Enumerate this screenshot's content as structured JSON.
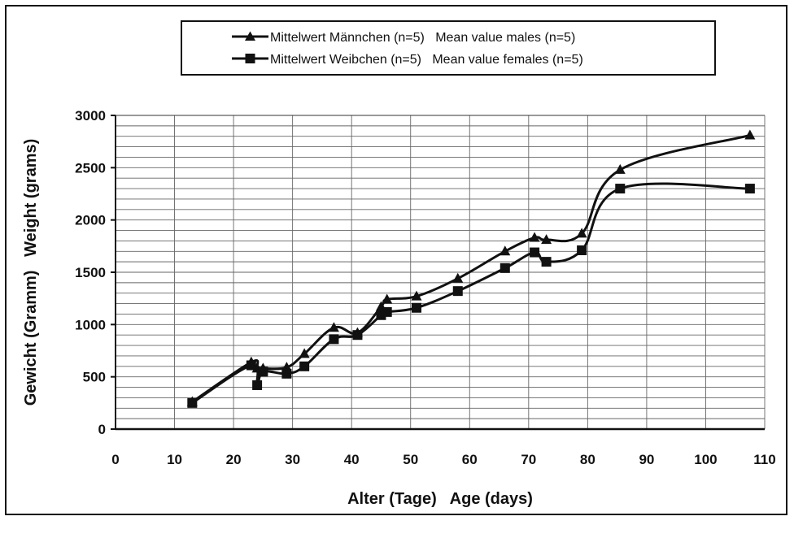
{
  "chart_data": {
    "type": "line",
    "xlabel": "Alter (Tage)   Age (days)",
    "ylabel": "Gewicht (Gramm)   Weight (grams)",
    "xlim": [
      0,
      110
    ],
    "ylim": [
      0,
      3000
    ],
    "x_ticks": [
      "0",
      "10",
      "20",
      "30",
      "40",
      "50",
      "60",
      "70",
      "80",
      "90",
      "100",
      "110"
    ],
    "y_ticks": [
      "0",
      "500",
      "1000",
      "1500",
      "2000",
      "2500",
      "3000"
    ],
    "grid": "on",
    "legend_position": "top-center",
    "series": [
      {
        "name": "Mittelwert Männchen (n=5)   Mean value males (n=5)",
        "marker": "triangle",
        "color": "#111111",
        "points": [
          [
            13,
            260
          ],
          [
            23,
            640
          ],
          [
            24,
            580
          ],
          [
            25,
            580
          ],
          [
            29,
            590
          ],
          [
            32,
            720
          ],
          [
            37,
            970
          ],
          [
            41,
            920
          ],
          [
            45,
            1170
          ],
          [
            46,
            1240
          ],
          [
            51,
            1270
          ],
          [
            58,
            1440
          ],
          [
            66,
            1700
          ],
          [
            71,
            1830
          ],
          [
            73,
            1810
          ],
          [
            79,
            1870
          ],
          [
            85.5,
            2480
          ],
          [
            107.5,
            2810
          ]
        ]
      },
      {
        "name": "Mittelwert Weibchen (n=5)   Mean value females (n=5)",
        "marker": "square",
        "color": "#111111",
        "points": [
          [
            13,
            250
          ],
          [
            23,
            610
          ],
          [
            24,
            420
          ],
          [
            25,
            550
          ],
          [
            29,
            530
          ],
          [
            32,
            600
          ],
          [
            37,
            860
          ],
          [
            41,
            900
          ],
          [
            45,
            1090
          ],
          [
            46,
            1120
          ],
          [
            51,
            1160
          ],
          [
            58,
            1320
          ],
          [
            66,
            1540
          ],
          [
            71,
            1690
          ],
          [
            73,
            1600
          ],
          [
            79,
            1710
          ],
          [
            85.5,
            2300
          ],
          [
            107.5,
            2300
          ]
        ]
      }
    ]
  }
}
